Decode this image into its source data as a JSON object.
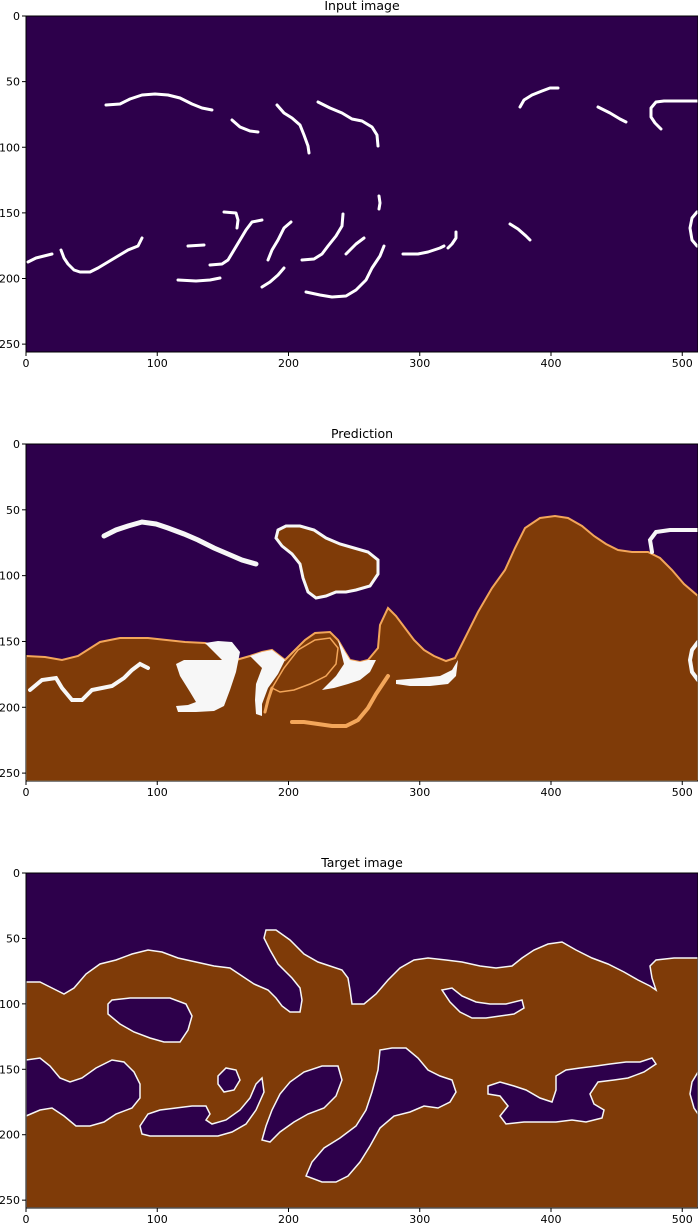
{
  "chart_data": [
    {
      "type": "heatmap",
      "title": "Input image",
      "xlim": [
        0,
        512
      ],
      "ylim": [
        256,
        0
      ],
      "xticks": [
        0,
        100,
        200,
        300,
        400,
        500
      ],
      "yticks": [
        0,
        50,
        100,
        150,
        200,
        250
      ],
      "grid": false,
      "colormap": "PuOr",
      "colors": {
        "background": "#2d004b",
        "strokes": "#ffffff"
      },
      "content": "white thin curve segments on dark purple background"
    },
    {
      "type": "heatmap",
      "title": "Prediction",
      "xlim": [
        0,
        512
      ],
      "ylim": [
        256,
        0
      ],
      "xticks": [
        0,
        100,
        200,
        300,
        400,
        500
      ],
      "yticks": [
        0,
        50,
        100,
        150,
        200,
        250
      ],
      "grid": false,
      "colormap": "PuOr",
      "colors": {
        "background": "#2d004b",
        "region": "#7f3b08",
        "boundary": "#f7f7f7"
      },
      "content": "brown predicted regions with white/orange soft edges on dark purple"
    },
    {
      "type": "heatmap",
      "title": "Target image",
      "xlim": [
        0,
        512
      ],
      "ylim": [
        256,
        0
      ],
      "xticks": [
        0,
        100,
        200,
        300,
        400,
        500
      ],
      "yticks": [
        0,
        50,
        100,
        150,
        200,
        250
      ],
      "grid": false,
      "colormap": "PuOr",
      "colors": {
        "background": "#2d004b",
        "region": "#7f3b08",
        "boundary": "#f7f7f7"
      },
      "content": "brown target regions with purple holes, thin white outlines"
    }
  ]
}
